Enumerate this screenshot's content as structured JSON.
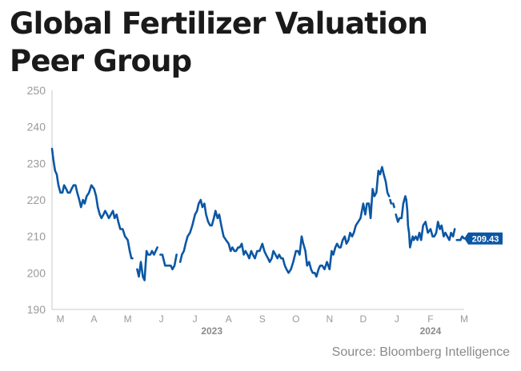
{
  "title": "Global Fertilizer Valuation Peer Group",
  "source": "Source: Bloomberg Intelligence",
  "colors": {
    "line": "#0b57a4",
    "axis_text": "#9a9a9a",
    "axis_line": "#c8c8c8",
    "year_text": "#8a8a8a",
    "label_bg": "#0b57a4",
    "label_text": "#ffffff"
  },
  "chart_data": {
    "type": "line",
    "title": "Global Fertilizer Valuation Peer Group",
    "xlabel": "",
    "ylabel": "",
    "ylim": [
      190,
      250
    ],
    "yticks": [
      190,
      200,
      210,
      220,
      230,
      240,
      250
    ],
    "grid": false,
    "xlim": [
      0,
      12.25
    ],
    "month_ticks": [
      {
        "label": "M",
        "x": 0.25
      },
      {
        "label": "A",
        "x": 1.25
      },
      {
        "label": "M",
        "x": 2.25
      },
      {
        "label": "J",
        "x": 3.25
      },
      {
        "label": "J",
        "x": 4.25
      },
      {
        "label": "A",
        "x": 5.25
      },
      {
        "label": "S",
        "x": 6.25
      },
      {
        "label": "O",
        "x": 7.25
      },
      {
        "label": "N",
        "x": 8.25
      },
      {
        "label": "D",
        "x": 9.25
      },
      {
        "label": "J",
        "x": 10.25
      },
      {
        "label": "F",
        "x": 11.25
      },
      {
        "label": "M",
        "x": 12.25
      }
    ],
    "year_labels": [
      {
        "label": "2023",
        "x": 4.75
      },
      {
        "label": "2024",
        "x": 11.25
      }
    ],
    "last_value_label": "209.43",
    "series": [
      {
        "name": "Global Fertilizer Valuation Peer Group",
        "segments": [
          [
            [
              0.0,
              234
            ],
            [
              0.04,
              231
            ],
            [
              0.09,
              228
            ],
            [
              0.14,
              227
            ],
            [
              0.19,
              224
            ],
            [
              0.25,
              222
            ],
            [
              0.31,
              222
            ],
            [
              0.36,
              224
            ],
            [
              0.42,
              223
            ],
            [
              0.47,
              222
            ],
            [
              0.53,
              222
            ],
            [
              0.58,
              223
            ],
            [
              0.64,
              224
            ],
            [
              0.7,
              224
            ],
            [
              0.75,
              222
            ],
            [
              0.81,
              220
            ],
            [
              0.86,
              218
            ],
            [
              0.92,
              220
            ],
            [
              0.97,
              219
            ],
            [
              1.03,
              221
            ],
            [
              1.1,
              222
            ],
            [
              1.17,
              224
            ],
            [
              1.25,
              223
            ],
            [
              1.31,
              221
            ],
            [
              1.36,
              218
            ],
            [
              1.42,
              216
            ],
            [
              1.47,
              215
            ],
            [
              1.53,
              216
            ],
            [
              1.58,
              217
            ],
            [
              1.64,
              216
            ],
            [
              1.69,
              215
            ],
            [
              1.75,
              216
            ],
            [
              1.81,
              217
            ],
            [
              1.86,
              215
            ],
            [
              1.92,
              216
            ],
            [
              1.97,
              214
            ],
            [
              2.03,
              212
            ],
            [
              2.1,
              212
            ],
            [
              2.17,
              210
            ],
            [
              2.25,
              209
            ],
            [
              2.31,
              206
            ],
            [
              2.36,
              204
            ],
            [
              2.39,
              204
            ]
          ],
          [
            [
              2.53,
              201
            ],
            [
              2.58,
              199
            ],
            [
              2.64,
              203
            ],
            [
              2.7,
              199
            ],
            [
              2.75,
              198
            ],
            [
              2.81,
              206
            ],
            [
              2.86,
              205
            ],
            [
              2.92,
              205
            ],
            [
              2.97,
              206
            ],
            [
              3.03,
              205
            ],
            [
              3.08,
              206
            ],
            [
              3.13,
              207
            ]
          ],
          [
            [
              3.22,
              205
            ],
            [
              3.28,
              205
            ],
            [
              3.36,
              202
            ],
            [
              3.42,
              202
            ],
            [
              3.47,
              202
            ],
            [
              3.53,
              202
            ],
            [
              3.58,
              201
            ],
            [
              3.64,
              202
            ],
            [
              3.7,
              205
            ]
          ],
          [
            [
              3.81,
              203
            ],
            [
              3.86,
              205
            ],
            [
              3.92,
              206
            ],
            [
              3.97,
              208
            ],
            [
              4.03,
              210
            ],
            [
              4.1,
              211
            ],
            [
              4.17,
              213
            ],
            [
              4.25,
              216
            ],
            [
              4.31,
              217
            ],
            [
              4.36,
              219
            ],
            [
              4.42,
              220
            ],
            [
              4.47,
              218
            ],
            [
              4.53,
              219
            ],
            [
              4.58,
              216
            ],
            [
              4.64,
              214
            ],
            [
              4.7,
              213
            ],
            [
              4.75,
              213
            ],
            [
              4.81,
              215
            ],
            [
              4.86,
              217
            ],
            [
              4.92,
              215
            ],
            [
              4.97,
              216
            ],
            [
              5.03,
              213
            ],
            [
              5.1,
              210
            ],
            [
              5.17,
              209
            ],
            [
              5.25,
              208
            ],
            [
              5.31,
              206
            ],
            [
              5.36,
              207
            ],
            [
              5.42,
              206
            ],
            [
              5.47,
              206
            ],
            [
              5.53,
              207
            ],
            [
              5.58,
              207
            ],
            [
              5.64,
              208
            ],
            [
              5.7,
              205
            ],
            [
              5.75,
              206
            ],
            [
              5.81,
              205
            ],
            [
              5.86,
              204
            ],
            [
              5.92,
              206
            ],
            [
              5.97,
              205
            ],
            [
              6.03,
              204
            ],
            [
              6.1,
              206
            ],
            [
              6.17,
              206
            ],
            [
              6.25,
              208
            ],
            [
              6.31,
              206
            ],
            [
              6.36,
              205
            ],
            [
              6.42,
              204
            ],
            [
              6.47,
              203
            ],
            [
              6.53,
              204
            ],
            [
              6.58,
              206
            ],
            [
              6.64,
              205
            ],
            [
              6.7,
              204
            ],
            [
              6.75,
              205
            ],
            [
              6.81,
              204
            ],
            [
              6.86,
              204
            ],
            [
              6.92,
              202
            ],
            [
              6.97,
              201
            ],
            [
              7.03,
              200
            ],
            [
              7.1,
              201
            ],
            [
              7.17,
              203
            ],
            [
              7.25,
              206
            ],
            [
              7.31,
              206
            ],
            [
              7.36,
              205
            ],
            [
              7.42,
              210
            ],
            [
              7.47,
              208
            ],
            [
              7.53,
              206
            ],
            [
              7.58,
              202
            ],
            [
              7.64,
              203
            ],
            [
              7.7,
              201
            ],
            [
              7.75,
              200
            ],
            [
              7.81,
              200
            ],
            [
              7.86,
              199
            ],
            [
              7.92,
              201
            ],
            [
              7.97,
              202
            ],
            [
              8.03,
              202
            ],
            [
              8.1,
              201
            ],
            [
              8.17,
              203
            ],
            [
              8.25,
              201
            ],
            [
              8.31,
              206
            ],
            [
              8.36,
              205
            ],
            [
              8.42,
              207
            ],
            [
              8.47,
              208
            ],
            [
              8.53,
              207
            ],
            [
              8.58,
              207
            ],
            [
              8.64,
              209
            ],
            [
              8.7,
              210
            ],
            [
              8.75,
              208
            ],
            [
              8.81,
              209
            ],
            [
              8.86,
              211
            ],
            [
              8.92,
              210
            ],
            [
              8.97,
              211
            ],
            [
              9.03,
              213
            ],
            [
              9.1,
              214
            ],
            [
              9.17,
              215
            ],
            [
              9.25,
              219
            ],
            [
              9.31,
              216
            ],
            [
              9.36,
              219
            ],
            [
              9.42,
              219
            ],
            [
              9.47,
              215
            ],
            [
              9.53,
              223
            ],
            [
              9.58,
              221
            ],
            [
              9.64,
              222
            ],
            [
              9.7,
              228
            ],
            [
              9.75,
              227
            ],
            [
              9.81,
              229
            ],
            [
              9.86,
              227
            ],
            [
              9.92,
              225
            ],
            [
              9.97,
              222
            ],
            [
              10.02,
              221
            ]
          ],
          [
            [
              10.05,
              220
            ],
            [
              10.08,
              219
            ]
          ],
          [
            [
              10.14,
              219
            ],
            [
              10.17,
              218
            ]
          ],
          [
            [
              10.22,
              216
            ],
            [
              10.28,
              214
            ],
            [
              10.33,
              215
            ],
            [
              10.39,
              215
            ],
            [
              10.44,
              219
            ],
            [
              10.5,
              221
            ],
            [
              10.53,
              220
            ],
            [
              10.56,
              217
            ],
            [
              10.58,
              213
            ],
            [
              10.61,
              211
            ],
            [
              10.64,
              207
            ],
            [
              10.69,
              209
            ],
            [
              10.72,
              210
            ],
            [
              10.75,
              209
            ],
            [
              10.81,
              210
            ],
            [
              10.86,
              209
            ],
            [
              10.92,
              211
            ],
            [
              10.97,
              209
            ],
            [
              11.03,
              213
            ],
            [
              11.1,
              214
            ],
            [
              11.17,
              211
            ],
            [
              11.25,
              212
            ],
            [
              11.31,
              210
            ],
            [
              11.36,
              210
            ],
            [
              11.42,
              211
            ],
            [
              11.47,
              214
            ],
            [
              11.53,
              212
            ],
            [
              11.58,
              213
            ],
            [
              11.64,
              210
            ],
            [
              11.69,
              211
            ],
            [
              11.75,
              210
            ],
            [
              11.81,
              209
            ],
            [
              11.86,
              211
            ],
            [
              11.92,
              210
            ],
            [
              11.97,
              212
            ]
          ],
          [
            [
              12.03,
              209
            ],
            [
              12.08,
              209
            ],
            [
              12.14,
              209
            ],
            [
              12.19,
              210
            ],
            [
              12.25,
              209.43
            ]
          ]
        ]
      }
    ]
  }
}
